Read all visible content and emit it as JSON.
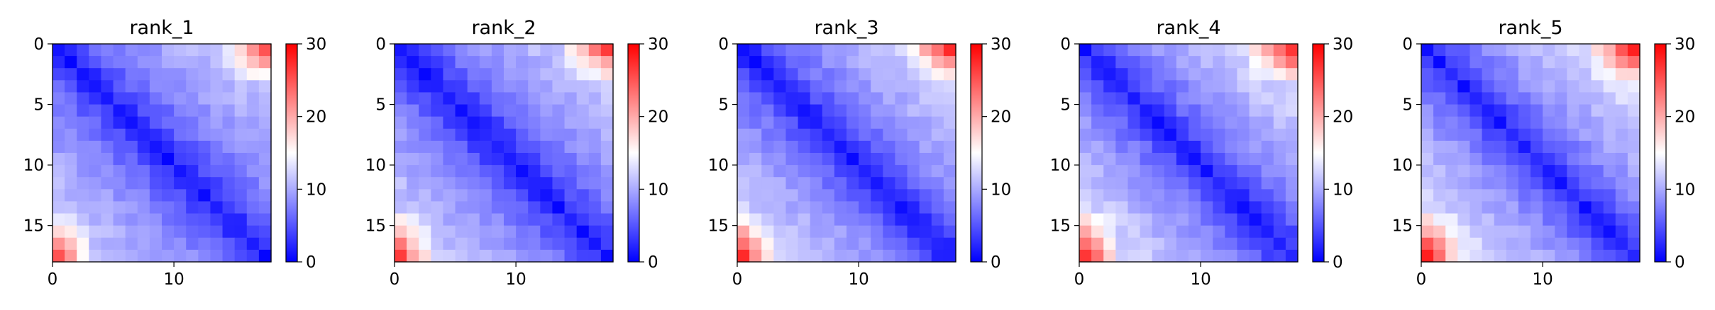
{
  "chart_data": [
    {
      "type": "heatmap",
      "title": "rank_1",
      "n": 18,
      "near": [
        1.3,
        3.0,
        4.5,
        5.7,
        6.6,
        7.4,
        8.1,
        8.7,
        9.2,
        9.7,
        10.1,
        10.5,
        10.9,
        11.3,
        11.7,
        12.2,
        12.8,
        13.5
      ],
      "corner_boost": 11,
      "x_ticks": [
        0,
        10
      ],
      "y_ticks": [
        0,
        5,
        10,
        15
      ],
      "colorbar": {
        "min": 0,
        "max": 30,
        "ticks": [
          0,
          10,
          20,
          30
        ],
        "colors": [
          "#0000ff",
          "#ffffff",
          "#ff0000"
        ]
      }
    },
    {
      "type": "heatmap",
      "title": "rank_2",
      "n": 18,
      "near": [
        1.3,
        2.9,
        4.3,
        5.6,
        6.6,
        7.4,
        8.1,
        8.7,
        9.3,
        9.8,
        10.3,
        10.8,
        11.2,
        11.6,
        12.0,
        12.5,
        13.0,
        13.6
      ],
      "corner_boost": 12,
      "x_ticks": [
        0,
        10
      ],
      "y_ticks": [
        0,
        5,
        10,
        15
      ],
      "colorbar": {
        "min": 0,
        "max": 30,
        "ticks": [
          0,
          10,
          20,
          30
        ],
        "colors": [
          "#0000ff",
          "#ffffff",
          "#ff0000"
        ]
      }
    },
    {
      "type": "heatmap",
      "title": "rank_3",
      "n": 18,
      "near": [
        1.4,
        3.0,
        4.6,
        5.8,
        6.8,
        7.6,
        8.4,
        9.0,
        9.6,
        10.2,
        10.7,
        11.2,
        11.7,
        12.2,
        12.8,
        13.4,
        14.1,
        14.8
      ],
      "corner_boost": 12,
      "x_ticks": [
        0,
        10
      ],
      "y_ticks": [
        0,
        5,
        10,
        15
      ],
      "colorbar": {
        "min": 0,
        "max": 30,
        "ticks": [
          0,
          10,
          20,
          30
        ],
        "colors": [
          "#0000ff",
          "#ffffff",
          "#ff0000"
        ]
      }
    },
    {
      "type": "heatmap",
      "title": "rank_4",
      "n": 18,
      "near": [
        1.4,
        3.1,
        4.6,
        5.9,
        6.9,
        7.8,
        8.6,
        9.3,
        9.9,
        10.5,
        11.0,
        11.5,
        12.0,
        12.5,
        13.1,
        13.7,
        14.4,
        15.2
      ],
      "corner_boost": 12,
      "x_ticks": [
        0,
        10
      ],
      "y_ticks": [
        0,
        5,
        10,
        15
      ],
      "colorbar": {
        "min": 0,
        "max": 30,
        "ticks": [
          0,
          10,
          20,
          30
        ],
        "colors": [
          "#0000ff",
          "#ffffff",
          "#ff0000"
        ]
      }
    },
    {
      "type": "heatmap",
      "title": "rank_5",
      "n": 18,
      "near": [
        1.5,
        3.2,
        4.8,
        6.1,
        7.2,
        8.1,
        8.9,
        9.6,
        10.2,
        10.8,
        11.4,
        11.9,
        12.4,
        12.9,
        13.5,
        14.1,
        14.8,
        15.6
      ],
      "corner_boost": 13,
      "x_ticks": [
        0,
        10
      ],
      "y_ticks": [
        0,
        5,
        10,
        15
      ],
      "colorbar": {
        "min": 0,
        "max": 30,
        "ticks": [
          0,
          10,
          20,
          30
        ],
        "colors": [
          "#0000ff",
          "#ffffff",
          "#ff0000"
        ]
      }
    }
  ]
}
